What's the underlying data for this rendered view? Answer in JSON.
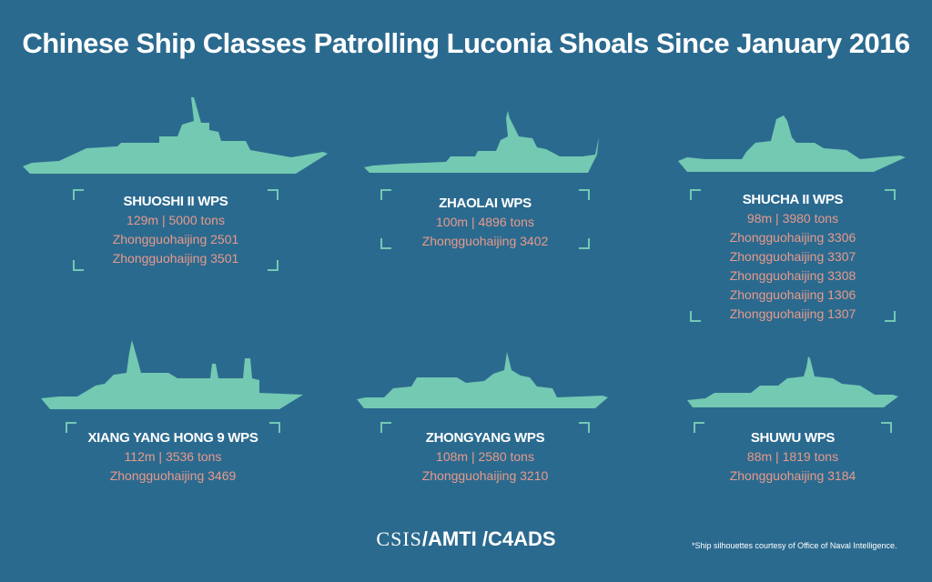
{
  "title": "Chinese Ship Classes Patrolling Luconia Shoals Since January 2016",
  "ships": [
    {
      "name": "SHUOSHI II WPS",
      "spec": "129m | 5000 tons",
      "hulls": [
        "Zhongguohaijing 2501",
        "Zhongguohaijing 3501"
      ]
    },
    {
      "name": "ZHAOLAI WPS",
      "spec": "100m | 4896 tons",
      "hulls": [
        "Zhongguohaijing 3402"
      ]
    },
    {
      "name": "SHUCHA II WPS",
      "spec": "98m | 3980 tons",
      "hulls": [
        "Zhongguohaijing 3306",
        "Zhongguohaijing 3307",
        "Zhongguohaijing 3308",
        "Zhongguohaijing 1306",
        "Zhongguohaijing 1307"
      ]
    },
    {
      "name": "XIANG YANG HONG 9 WPS",
      "spec": "112m | 3536 tons",
      "hulls": [
        "Zhongguohaijing 3469"
      ]
    },
    {
      "name": "ZHONGYANG WPS",
      "spec": "108m | 2580 tons",
      "hulls": [
        "Zhongguohaijing 3210"
      ]
    },
    {
      "name": "SHUWU WPS",
      "spec": "88m | 1819 tons",
      "hulls": [
        "Zhongguohaijing 3184"
      ]
    }
  ],
  "footer": {
    "csis": "CSIS",
    "rest": "/AMTI /C4ADS"
  },
  "footnote": "*Ship silhouettes courtesy of Office of Naval Intelligence.",
  "colors": {
    "background": "#2b6a8f",
    "silhouette": "#73c9b2",
    "name": "#ffffff",
    "detail": "#e79a8a"
  }
}
